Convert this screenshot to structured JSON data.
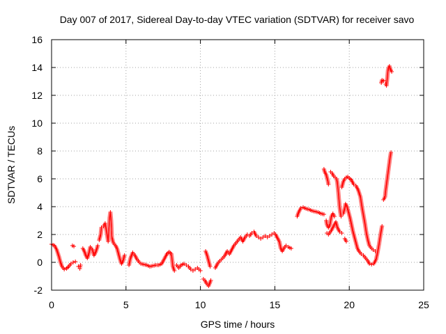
{
  "chart_data": {
    "type": "scatter",
    "title": "Day 007 of 2017, Sidereal Day-to-day VTEC variation (SDTVAR) for receiver savo",
    "xlabel": "GPS time / hours",
    "ylabel": "SDTVAR / TECUs",
    "xlim": [
      0,
      25
    ],
    "ylim": [
      -2,
      16
    ],
    "xticks": [
      0,
      5,
      10,
      15,
      20,
      25
    ],
    "yticks": [
      -2,
      0,
      2,
      4,
      6,
      8,
      10,
      12,
      14,
      16
    ],
    "grid": true,
    "marker": "+",
    "colors": {
      "points": "#ff0000",
      "grid": "#a0a0a0",
      "axes": "#000000"
    },
    "series": [
      {
        "name": "SDTVAR",
        "segments": [
          [
            [
              0.0,
              1.3
            ],
            [
              0.2,
              1.2
            ],
            [
              0.35,
              0.9
            ],
            [
              0.5,
              0.4
            ],
            [
              0.6,
              0.0
            ],
            [
              0.7,
              -0.3
            ],
            [
              0.85,
              -0.5
            ],
            [
              1.0,
              -0.45
            ],
            [
              1.15,
              -0.3
            ],
            [
              1.3,
              -0.1
            ],
            [
              1.45,
              0.0
            ],
            [
              1.6,
              0.05
            ]
          ],
          [
            [
              1.4,
              1.2
            ],
            [
              1.5,
              1.15
            ]
          ],
          [
            [
              1.8,
              -0.3
            ],
            [
              1.9,
              -0.45
            ],
            [
              1.95,
              -0.2
            ]
          ],
          [
            [
              2.1,
              1.0
            ],
            [
              2.2,
              0.8
            ],
            [
              2.3,
              0.5
            ],
            [
              2.4,
              0.3
            ],
            [
              2.5,
              0.6
            ],
            [
              2.6,
              1.1
            ],
            [
              2.75,
              0.9
            ],
            [
              2.85,
              0.5
            ],
            [
              2.95,
              0.7
            ],
            [
              3.05,
              1.0
            ],
            [
              3.1,
              1.2
            ]
          ],
          [
            [
              3.2,
              1.6
            ],
            [
              3.3,
              2.0
            ],
            [
              3.35,
              2.5
            ],
            [
              3.5,
              2.6
            ],
            [
              3.6,
              2.8
            ],
            [
              3.7,
              2.2
            ],
            [
              3.8,
              1.5
            ],
            [
              3.9,
              3.2
            ],
            [
              3.95,
              3.6
            ],
            [
              4.0,
              3.0
            ],
            [
              4.05,
              1.8
            ],
            [
              4.15,
              1.4
            ],
            [
              4.3,
              1.2
            ],
            [
              4.4,
              1.0
            ],
            [
              4.5,
              0.6
            ],
            [
              4.6,
              0.2
            ],
            [
              4.7,
              -0.1
            ],
            [
              4.8,
              0.1
            ],
            [
              4.9,
              0.5
            ]
          ],
          [
            [
              5.2,
              -0.2
            ],
            [
              5.3,
              0.3
            ],
            [
              5.45,
              0.7
            ],
            [
              5.6,
              0.5
            ],
            [
              5.75,
              0.2
            ],
            [
              5.9,
              0.0
            ],
            [
              6.0,
              -0.1
            ],
            [
              6.2,
              -0.15
            ],
            [
              6.4,
              -0.2
            ],
            [
              6.6,
              -0.3
            ],
            [
              6.8,
              -0.25
            ],
            [
              7.0,
              -0.2
            ],
            [
              7.2,
              -0.2
            ],
            [
              7.4,
              -0.1
            ],
            [
              7.6,
              0.3
            ],
            [
              7.75,
              0.6
            ],
            [
              7.9,
              0.75
            ],
            [
              8.05,
              0.6
            ],
            [
              8.15,
              -0.3
            ],
            [
              8.25,
              -0.6
            ]
          ],
          [
            [
              8.4,
              -0.2
            ],
            [
              8.55,
              -0.4
            ],
            [
              8.7,
              -0.2
            ],
            [
              8.9,
              -0.1
            ],
            [
              9.05,
              -0.2
            ],
            [
              9.2,
              -0.3
            ],
            [
              9.35,
              -0.5
            ],
            [
              9.5,
              -0.6
            ],
            [
              9.65,
              -0.5
            ],
            [
              9.8,
              -0.4
            ],
            [
              10.0,
              -0.6
            ]
          ],
          [
            [
              10.2,
              -1.2
            ],
            [
              10.3,
              -1.3
            ],
            [
              10.4,
              -1.5
            ],
            [
              10.55,
              -1.7
            ],
            [
              10.7,
              -1.3
            ]
          ],
          [
            [
              10.35,
              0.8
            ],
            [
              10.45,
              0.5
            ],
            [
              10.55,
              0.1
            ],
            [
              10.65,
              -0.3
            ]
          ],
          [
            [
              11.0,
              -0.4
            ],
            [
              11.15,
              -0.1
            ],
            [
              11.3,
              0.1
            ],
            [
              11.5,
              0.3
            ],
            [
              11.65,
              0.5
            ],
            [
              11.8,
              0.8
            ],
            [
              11.95,
              0.6
            ],
            [
              12.1,
              0.9
            ],
            [
              12.25,
              1.2
            ],
            [
              12.4,
              1.4
            ],
            [
              12.55,
              1.6
            ],
            [
              12.7,
              1.8
            ],
            [
              12.85,
              1.5
            ],
            [
              13.0,
              1.8
            ],
            [
              13.15,
              2.0
            ],
            [
              13.3,
              1.9
            ],
            [
              13.45,
              2.1
            ],
            [
              13.6,
              2.2
            ],
            [
              13.75,
              1.9
            ],
            [
              13.9,
              1.8
            ],
            [
              14.05,
              1.7
            ],
            [
              14.2,
              1.8
            ],
            [
              14.35,
              1.9
            ],
            [
              14.5,
              1.8
            ],
            [
              14.65,
              1.9
            ],
            [
              14.8,
              2.0
            ],
            [
              14.95,
              2.1
            ],
            [
              15.05,
              2.0
            ],
            [
              15.15,
              1.8
            ],
            [
              15.3,
              1.5
            ],
            [
              15.4,
              1.0
            ],
            [
              15.5,
              0.8
            ],
            [
              15.6,
              1.0
            ],
            [
              15.75,
              1.2
            ],
            [
              15.9,
              1.1
            ],
            [
              16.1,
              1.0
            ]
          ],
          [
            [
              16.5,
              3.3
            ],
            [
              16.6,
              3.6
            ],
            [
              16.75,
              3.9
            ],
            [
              16.9,
              3.95
            ],
            [
              17.1,
              3.85
            ],
            [
              17.3,
              3.8
            ],
            [
              17.5,
              3.7
            ],
            [
              17.7,
              3.65
            ],
            [
              17.9,
              3.6
            ],
            [
              18.1,
              3.5
            ],
            [
              18.3,
              3.45
            ]
          ],
          [
            [
              18.3,
              6.7
            ],
            [
              18.35,
              6.5
            ],
            [
              18.45,
              6.3
            ],
            [
              18.55,
              5.9
            ],
            [
              18.6,
              5.6
            ]
          ],
          [
            [
              18.45,
              3.0
            ],
            [
              18.5,
              2.7
            ],
            [
              18.6,
              2.5
            ],
            [
              18.7,
              2.7
            ],
            [
              18.8,
              3.3
            ],
            [
              18.9,
              3.5
            ],
            [
              19.0,
              3.3
            ]
          ],
          [
            [
              18.5,
              2.1
            ],
            [
              18.6,
              2.0
            ],
            [
              18.8,
              2.3
            ],
            [
              18.95,
              2.6
            ],
            [
              19.1,
              2.9
            ],
            [
              19.2,
              2.5
            ],
            [
              19.35,
              2.2
            ],
            [
              19.5,
              2.1
            ]
          ],
          [
            [
              18.75,
              6.5
            ],
            [
              18.85,
              6.4
            ],
            [
              18.95,
              6.2
            ],
            [
              19.05,
              6.1
            ],
            [
              19.15,
              6.0
            ],
            [
              19.2,
              5.7
            ],
            [
              19.25,
              5.2
            ],
            [
              19.3,
              4.6
            ],
            [
              19.35,
              4.0
            ],
            [
              19.4,
              3.6
            ],
            [
              19.45,
              3.3
            ]
          ],
          [
            [
              19.5,
              5.4
            ],
            [
              19.6,
              5.8
            ],
            [
              19.7,
              6.0
            ],
            [
              19.8,
              6.1
            ],
            [
              19.9,
              6.15
            ],
            [
              20.0,
              6.05
            ],
            [
              20.15,
              5.9
            ],
            [
              20.3,
              5.6
            ],
            [
              20.45,
              5.5
            ],
            [
              20.6,
              5.2
            ],
            [
              20.75,
              4.7
            ],
            [
              20.85,
              4.0
            ],
            [
              20.95,
              3.4
            ],
            [
              21.05,
              2.8
            ],
            [
              21.15,
              2.1
            ],
            [
              21.25,
              1.6
            ],
            [
              21.35,
              1.2
            ],
            [
              21.5,
              1.0
            ],
            [
              21.6,
              0.9
            ],
            [
              21.75,
              0.8
            ]
          ],
          [
            [
              19.6,
              3.5
            ],
            [
              19.7,
              3.9
            ],
            [
              19.75,
              4.2
            ],
            [
              19.85,
              4.0
            ],
            [
              19.95,
              3.6
            ],
            [
              20.05,
              3.2
            ],
            [
              20.15,
              2.7
            ],
            [
              20.25,
              2.2
            ],
            [
              20.35,
              1.8
            ],
            [
              20.45,
              1.4
            ],
            [
              20.55,
              1.0
            ],
            [
              20.65,
              0.8
            ],
            [
              20.8,
              0.6
            ],
            [
              20.95,
              0.5
            ],
            [
              21.1,
              0.3
            ],
            [
              21.25,
              0.1
            ],
            [
              21.35,
              -0.1
            ],
            [
              21.5,
              -0.15
            ],
            [
              21.65,
              -0.1
            ],
            [
              21.8,
              0.2
            ],
            [
              21.9,
              0.7
            ],
            [
              22.0,
              1.3
            ],
            [
              22.1,
              2.0
            ],
            [
              22.2,
              2.6
            ]
          ],
          [
            [
              19.7,
              1.7
            ],
            [
              19.8,
              1.5
            ]
          ],
          [
            [
              22.15,
              12.9
            ],
            [
              22.2,
              13.1
            ],
            [
              22.3,
              13.05
            ]
          ],
          [
            [
              22.45,
              12.8
            ],
            [
              22.5,
              12.7
            ],
            [
              22.55,
              13.2
            ],
            [
              22.6,
              13.8
            ],
            [
              22.65,
              14.0
            ],
            [
              22.7,
              14.1
            ],
            [
              22.75,
              13.9
            ],
            [
              22.85,
              13.7
            ]
          ],
          [
            [
              22.3,
              4.5
            ],
            [
              22.4,
              4.7
            ],
            [
              22.45,
              5.2
            ],
            [
              22.5,
              5.6
            ],
            [
              22.55,
              6.0
            ],
            [
              22.6,
              6.4
            ],
            [
              22.65,
              6.8
            ],
            [
              22.7,
              7.2
            ],
            [
              22.75,
              7.6
            ],
            [
              22.8,
              7.9
            ]
          ]
        ]
      }
    ]
  }
}
